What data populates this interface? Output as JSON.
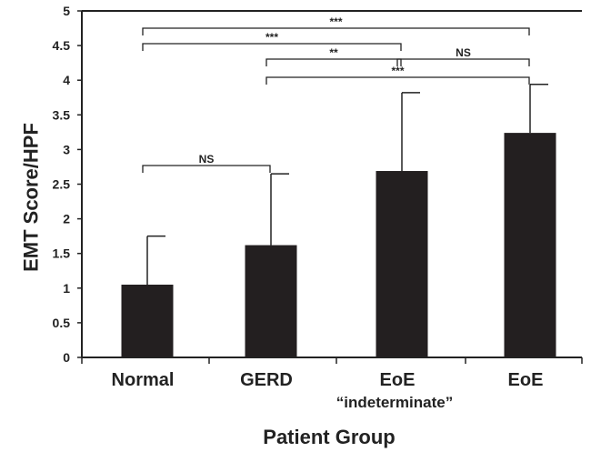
{
  "chart_data": {
    "type": "bar",
    "categories": [
      "Normal",
      "GERD",
      "EoE",
      "EoE"
    ],
    "category_sublabels": [
      "",
      "",
      "“indeterminate”",
      ""
    ],
    "values": [
      1.05,
      1.62,
      2.69,
      3.24
    ],
    "error_upper": [
      0.7,
      1.03,
      1.13,
      0.7
    ],
    "xlabel": "Patient Group",
    "ylabel": "EMT Score/HPF",
    "ylim": [
      0,
      5
    ],
    "yticks": [
      "0",
      "0.5",
      "1",
      "1.5",
      "2",
      "2.5",
      "3",
      "3.5",
      "4",
      "4.5",
      "5"
    ],
    "significance": [
      {
        "from": 0,
        "to": 3,
        "label": "***"
      },
      {
        "from": 0,
        "to": 2,
        "label": "***"
      },
      {
        "from": 1,
        "to": 2,
        "label": "**"
      },
      {
        "from": 2,
        "to": 3,
        "label": "NS"
      },
      {
        "from": 1,
        "to": 3,
        "label": "***"
      },
      {
        "from": 0,
        "to": 1,
        "label": "NS"
      }
    ],
    "bar_color": "#231f20",
    "grid": false,
    "legend": "none"
  }
}
